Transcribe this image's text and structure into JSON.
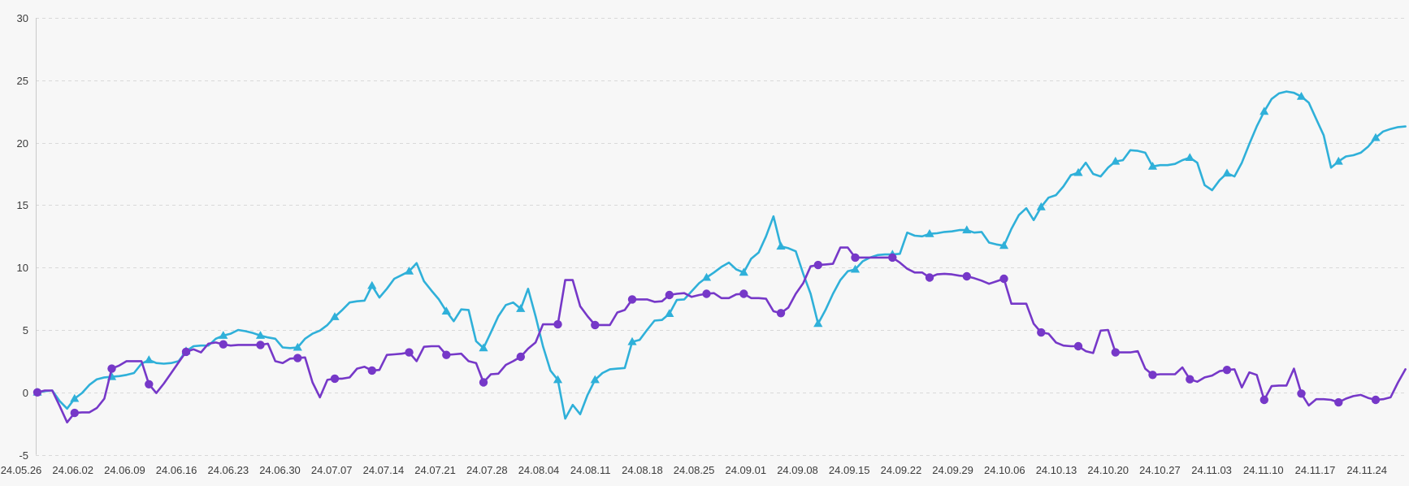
{
  "colors": {
    "background": "#f7f7f7",
    "grid_line": "#d9d9d9",
    "axis_line": "#c9c9c9",
    "tick_text": "#3b3b3b",
    "series_cyan": "#2fb0d9",
    "series_purple": "#7638c8"
  },
  "chart_data": {
    "type": "line",
    "title": "",
    "legend": "none",
    "grid": "horizontal-dashed",
    "x_axis": {
      "labels": [
        "24.05.26",
        "24.06.02",
        "24.06.09",
        "24.06.16",
        "24.06.23",
        "24.06.30",
        "24.07.07",
        "24.07.14",
        "24.07.21",
        "24.07.28",
        "24.08.04",
        "24.08.11",
        "24.08.18",
        "24.08.25",
        "24.09.01",
        "24.09.08",
        "24.09.15",
        "24.09.22",
        "24.09.29",
        "24.10.06",
        "24.10.13",
        "24.10.20",
        "24.10.27",
        "24.11.03",
        "24.11.10",
        "24.11.17",
        "24.11.24"
      ],
      "points_per_label": 7
    },
    "y_axis": {
      "ticks": [
        30,
        25,
        20,
        15,
        10,
        5,
        0,
        -5
      ],
      "min": -5,
      "max": 30
    },
    "series": [
      {
        "name": "cyan-line",
        "color": "#2fb0d9",
        "marker": "triangle",
        "marker_interval": 5,
        "values": [
          0,
          0.1,
          0.15,
          -0.7,
          -1.3,
          -0.5,
          -0.05,
          0.6,
          1.05,
          1.2,
          1.25,
          1.3,
          1.4,
          1.55,
          2.3,
          2.6,
          2.35,
          2.3,
          2.35,
          2.5,
          3.3,
          3.7,
          3.75,
          3.75,
          4.3,
          4.55,
          4.7,
          5.0,
          4.9,
          4.75,
          4.55,
          4.4,
          4.3,
          3.6,
          3.55,
          3.6,
          4.3,
          4.7,
          4.95,
          5.4,
          6.05,
          6.6,
          7.2,
          7.3,
          7.35,
          8.55,
          7.6,
          8.3,
          9.1,
          9.4,
          9.7,
          10.35,
          8.9,
          8.15,
          7.45,
          6.5,
          5.7,
          6.65,
          6.6,
          4.1,
          3.55,
          4.8,
          6.1,
          7.0,
          7.2,
          6.7,
          8.3,
          6.1,
          3.7,
          1.75,
          1.0,
          -2.1,
          -1.0,
          -1.75,
          -0.2,
          1.0,
          1.55,
          1.85,
          1.9,
          1.95,
          4.05,
          4.2,
          5.0,
          5.75,
          5.8,
          6.3,
          7.4,
          7.45,
          8.1,
          8.75,
          9.2,
          9.6,
          10.05,
          10.4,
          9.85,
          9.6,
          10.7,
          11.2,
          12.5,
          14.1,
          11.7,
          11.55,
          11.3,
          9.5,
          7.9,
          5.5,
          6.6,
          7.9,
          9.0,
          9.7,
          9.85,
          10.5,
          10.8,
          11.0,
          11.05,
          11.05,
          11.1,
          12.8,
          12.55,
          12.5,
          12.7,
          12.75,
          12.85,
          12.9,
          13.0,
          13.0,
          12.8,
          12.85,
          12.0,
          11.85,
          11.75,
          13.1,
          14.2,
          14.75,
          13.8,
          14.85,
          15.6,
          15.8,
          16.5,
          17.4,
          17.6,
          18.4,
          17.5,
          17.3,
          18.0,
          18.5,
          18.6,
          19.4,
          19.35,
          19.2,
          18.1,
          18.2,
          18.2,
          18.3,
          18.6,
          18.8,
          18.4,
          16.6,
          16.2,
          17.0,
          17.55,
          17.3,
          18.4,
          19.9,
          21.3,
          22.5,
          23.5,
          23.95,
          24.1,
          24.0,
          23.7,
          23.2,
          21.9,
          20.6,
          18.0,
          18.5,
          18.9,
          19.0,
          19.2,
          19.7,
          20.4,
          20.9,
          21.1,
          21.25,
          21.3
        ]
      },
      {
        "name": "purple-line",
        "color": "#7638c8",
        "marker": "circle",
        "marker_interval": 5,
        "values": [
          0,
          0.15,
          0.15,
          -1.1,
          -2.4,
          -1.65,
          -1.6,
          -1.6,
          -1.25,
          -0.5,
          1.9,
          2.15,
          2.5,
          2.5,
          2.5,
          0.65,
          -0.05,
          0.7,
          1.55,
          2.4,
          3.25,
          3.45,
          3.2,
          3.9,
          4.0,
          3.85,
          3.75,
          3.8,
          3.8,
          3.8,
          3.8,
          3.9,
          2.5,
          2.35,
          2.7,
          2.75,
          2.8,
          0.8,
          -0.4,
          1.0,
          1.1,
          1.1,
          1.2,
          1.9,
          2.05,
          1.75,
          1.8,
          3.0,
          3.05,
          3.1,
          3.2,
          2.5,
          3.65,
          3.7,
          3.7,
          3.0,
          3.05,
          3.1,
          2.5,
          2.35,
          0.8,
          1.45,
          1.5,
          2.2,
          2.5,
          2.85,
          3.5,
          4.0,
          5.45,
          5.45,
          5.45,
          9.0,
          9.0,
          6.9,
          6.1,
          5.4,
          5.4,
          5.4,
          6.4,
          6.6,
          7.45,
          7.45,
          7.45,
          7.25,
          7.3,
          7.8,
          7.9,
          7.95,
          7.65,
          7.8,
          7.9,
          7.95,
          7.55,
          7.55,
          7.85,
          7.9,
          7.55,
          7.55,
          7.5,
          6.5,
          6.35,
          6.8,
          7.9,
          8.75,
          10.1,
          10.2,
          10.25,
          10.3,
          11.6,
          11.6,
          10.8,
          10.8,
          10.8,
          10.8,
          10.8,
          10.8,
          10.4,
          9.9,
          9.6,
          9.6,
          9.2,
          9.45,
          9.5,
          9.45,
          9.35,
          9.3,
          9.15,
          8.95,
          8.7,
          8.9,
          9.1,
          7.1,
          7.1,
          7.1,
          5.5,
          4.8,
          4.7,
          4.0,
          3.75,
          3.7,
          3.7,
          3.3,
          3.15,
          4.95,
          5.0,
          3.2,
          3.2,
          3.2,
          3.3,
          1.9,
          1.4,
          1.45,
          1.45,
          1.45,
          2.0,
          1.05,
          0.85,
          1.2,
          1.35,
          1.7,
          1.8,
          1.85,
          0.4,
          1.6,
          1.4,
          -0.6,
          0.5,
          0.55,
          0.55,
          1.9,
          -0.1,
          -1.05,
          -0.55,
          -0.55,
          -0.6,
          -0.8,
          -0.5,
          -0.3,
          -0.2,
          -0.45,
          -0.6,
          -0.55,
          -0.4,
          0.8,
          1.85
        ]
      }
    ]
  }
}
